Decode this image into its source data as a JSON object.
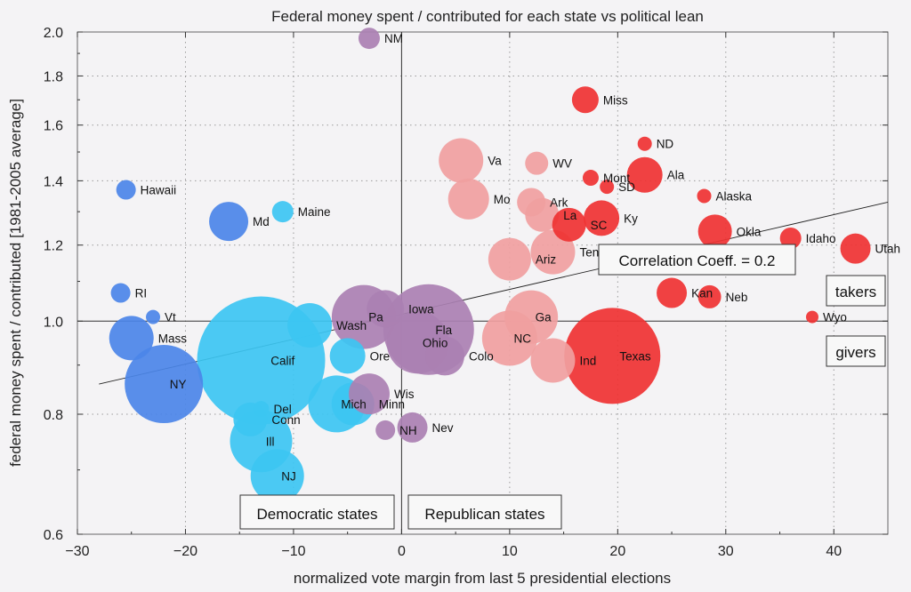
{
  "chart_data": {
    "type": "scatter",
    "title": "Federal money spent / contributed for each state vs political lean",
    "xlabel": "normalized vote margin from last 5 presidential elections",
    "ylabel": "federal money spent / contributed [1981-2005 average]",
    "xlim": [
      -30,
      45
    ],
    "ylim": [
      0.6,
      2.0
    ],
    "yscale": "log",
    "grid": true,
    "xticks": [
      -30,
      -20,
      -10,
      0,
      10,
      20,
      30,
      40
    ],
    "yticks": [
      0.6,
      0.8,
      1.0,
      1.2,
      1.4,
      1.6,
      1.8,
      2.0
    ],
    "ytick_labels": [
      "0.6",
      "0.8",
      "1.0",
      "1.2",
      "1.4",
      "1.6",
      "1.8",
      "2.0"
    ],
    "trendline": {
      "x": [
        -28,
        45
      ],
      "y": [
        0.86,
        1.33
      ]
    },
    "annotations": {
      "correlation": "Correlation Coeff. = 0.2",
      "takers": "takers",
      "givers": "givers",
      "democratic": "Democratic states",
      "republican": "Republican states"
    },
    "colors": {
      "strong_dem": "#4b86e8",
      "lean_dem": "#3cc6f2",
      "swing": "#aa80b2",
      "lean_rep": "#f0a0a0",
      "strong_rep": "#ef3232"
    },
    "points": [
      {
        "label": "NM",
        "x": -3,
        "y": 1.97,
        "size": 1.2,
        "group": "swing"
      },
      {
        "label": "Miss",
        "x": 17,
        "y": 1.7,
        "size": 1.5,
        "group": "strong_rep"
      },
      {
        "label": "ND",
        "x": 22.5,
        "y": 1.53,
        "size": 0.8,
        "group": "strong_rep"
      },
      {
        "label": "Va",
        "x": 5.5,
        "y": 1.47,
        "size": 2.5,
        "group": "lean_rep"
      },
      {
        "label": "WV",
        "x": 12.5,
        "y": 1.46,
        "size": 1.3,
        "group": "lean_rep"
      },
      {
        "label": "Mont",
        "x": 17.5,
        "y": 1.41,
        "size": 0.9,
        "group": "strong_rep"
      },
      {
        "label": "Ala",
        "x": 22.5,
        "y": 1.42,
        "size": 2.0,
        "group": "strong_rep"
      },
      {
        "label": "SD",
        "x": 19,
        "y": 1.38,
        "size": 0.8,
        "group": "strong_rep"
      },
      {
        "label": "Hawaii",
        "x": -25.5,
        "y": 1.37,
        "size": 1.1,
        "group": "strong_dem"
      },
      {
        "label": "Alaska",
        "x": 28,
        "y": 1.35,
        "size": 0.8,
        "group": "strong_rep"
      },
      {
        "label": "Mo",
        "x": 6.2,
        "y": 1.34,
        "size": 2.3,
        "group": "lean_rep"
      },
      {
        "label": "Ark",
        "x": 12,
        "y": 1.33,
        "size": 1.6,
        "group": "lean_rep"
      },
      {
        "label": "Maine",
        "x": -11,
        "y": 1.3,
        "size": 1.2,
        "group": "lean_dem"
      },
      {
        "label": "La",
        "x": 13,
        "y": 1.29,
        "size": 1.9,
        "group": "lean_rep"
      },
      {
        "label": "Md",
        "x": -16,
        "y": 1.27,
        "size": 2.2,
        "group": "strong_dem"
      },
      {
        "label": "SC",
        "x": 15.5,
        "y": 1.26,
        "size": 1.9,
        "group": "strong_rep"
      },
      {
        "label": "Ky",
        "x": 18.5,
        "y": 1.28,
        "size": 2.0,
        "group": "strong_rep"
      },
      {
        "label": "Okla",
        "x": 29,
        "y": 1.24,
        "size": 1.9,
        "group": "strong_rep"
      },
      {
        "label": "Idaho",
        "x": 36,
        "y": 1.22,
        "size": 1.2,
        "group": "strong_rep"
      },
      {
        "label": "Utah",
        "x": 42,
        "y": 1.19,
        "size": 1.7,
        "group": "strong_rep"
      },
      {
        "label": "Tenn",
        "x": 14,
        "y": 1.18,
        "size": 2.5,
        "group": "lean_rep"
      },
      {
        "label": "Ariz",
        "x": 10,
        "y": 1.16,
        "size": 2.4,
        "group": "lean_rep"
      },
      {
        "label": "Kan",
        "x": 25,
        "y": 1.07,
        "size": 1.7,
        "group": "strong_rep"
      },
      {
        "label": "Neb",
        "x": 28.5,
        "y": 1.06,
        "size": 1.3,
        "group": "strong_rep"
      },
      {
        "label": "RI",
        "x": -26,
        "y": 1.07,
        "size": 1.1,
        "group": "strong_dem"
      },
      {
        "label": "Vt",
        "x": -23,
        "y": 1.01,
        "size": 0.8,
        "group": "strong_dem"
      },
      {
        "label": "Wyo",
        "x": 38,
        "y": 1.01,
        "size": 0.7,
        "group": "strong_rep"
      },
      {
        "label": "Iowa",
        "x": -1.5,
        "y": 1.03,
        "size": 2.1,
        "group": "swing"
      },
      {
        "label": "Pa",
        "x": -3.5,
        "y": 1.01,
        "size": 3.6,
        "group": "swing"
      },
      {
        "label": "Ga",
        "x": 12,
        "y": 1.01,
        "size": 3.0,
        "group": "lean_rep"
      },
      {
        "label": "Wash",
        "x": -8.5,
        "y": 0.99,
        "size": 2.5,
        "group": "lean_dem"
      },
      {
        "label": "Fla",
        "x": 2.5,
        "y": 0.98,
        "size": 5.1,
        "group": "swing"
      },
      {
        "label": "Mass",
        "x": -25,
        "y": 0.96,
        "size": 2.5,
        "group": "strong_dem"
      },
      {
        "label": "NC",
        "x": 10,
        "y": 0.96,
        "size": 3.1,
        "group": "lean_rep"
      },
      {
        "label": "Ohio",
        "x": 1.5,
        "y": 0.95,
        "size": 3.5,
        "group": "swing"
      },
      {
        "label": "Texas",
        "x": 19.5,
        "y": 0.92,
        "size": 5.4,
        "group": "strong_rep"
      },
      {
        "label": "Calif",
        "x": -13,
        "y": 0.91,
        "size": 7.2,
        "group": "lean_dem"
      },
      {
        "label": "Ore",
        "x": -5,
        "y": 0.92,
        "size": 2.0,
        "group": "lean_dem"
      },
      {
        "label": "Colo",
        "x": 4,
        "y": 0.92,
        "size": 2.2,
        "group": "swing"
      },
      {
        "label": "Ind",
        "x": 14,
        "y": 0.91,
        "size": 2.5,
        "group": "lean_rep"
      },
      {
        "label": "NY",
        "x": -22,
        "y": 0.86,
        "size": 4.4,
        "group": "strong_dem"
      },
      {
        "label": "Wis",
        "x": -3,
        "y": 0.84,
        "size": 2.3,
        "group": "swing"
      },
      {
        "label": "Mich",
        "x": -6,
        "y": 0.82,
        "size": 3.2,
        "group": "lean_dem"
      },
      {
        "label": "Minn",
        "x": -4.5,
        "y": 0.82,
        "size": 2.4,
        "group": "lean_dem"
      },
      {
        "label": "Del",
        "x": -13,
        "y": 0.81,
        "size": 0.9,
        "group": "lean_dem"
      },
      {
        "label": "Conn",
        "x": -14,
        "y": 0.79,
        "size": 1.9,
        "group": "lean_dem"
      },
      {
        "label": "Nev",
        "x": 1,
        "y": 0.775,
        "size": 1.7,
        "group": "swing"
      },
      {
        "label": "NH",
        "x": -1.5,
        "y": 0.77,
        "size": 1.1,
        "group": "swing"
      },
      {
        "label": "Ill",
        "x": -13,
        "y": 0.75,
        "size": 3.5,
        "group": "lean_dem"
      },
      {
        "label": "NJ",
        "x": -11.5,
        "y": 0.69,
        "size": 3.0,
        "group": "lean_dem"
      }
    ]
  }
}
